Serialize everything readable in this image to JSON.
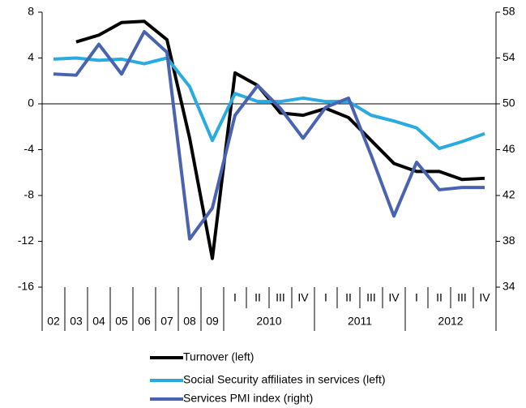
{
  "chart_data": {
    "type": "line",
    "categories": [
      "02",
      "03",
      "04",
      "05",
      "06",
      "07",
      "08",
      "09",
      "I",
      "II",
      "III",
      "IV",
      "I",
      "II",
      "III",
      "IV",
      "I",
      "II",
      "III",
      "IV"
    ],
    "category_groups": [
      "2010",
      "2011",
      "2012"
    ],
    "ylim": [
      -16,
      8
    ],
    "yticks": [
      8,
      4,
      0,
      -4,
      -8,
      -12,
      -16
    ],
    "y2lim": [
      34,
      58
    ],
    "y2ticks": [
      58,
      54,
      50,
      46,
      42,
      38,
      34
    ],
    "series": [
      {
        "name": "Turnover (left)",
        "color": "#000000",
        "values": [
          null,
          5.4,
          6.0,
          7.1,
          7.2,
          5.6,
          -3.0,
          -13.5,
          2.7,
          1.6,
          -0.8,
          -1.0,
          -0.4,
          -1.2,
          -3.2,
          -5.2,
          -5.9,
          -5.9,
          -6.6,
          -6.5
        ]
      },
      {
        "name": "Social Security affiliates in services (left)",
        "color": "#29abe2",
        "values": [
          3.9,
          4.0,
          3.8,
          3.9,
          3.5,
          4.0,
          1.5,
          -3.2,
          0.9,
          0.2,
          0.2,
          0.5,
          0.2,
          0.2,
          -1.0,
          -1.5,
          -2.1,
          -3.9,
          -3.3,
          -2.6
        ]
      },
      {
        "name": "Services PMI index (right)",
        "color": "#4a63b0",
        "axis": "y2",
        "values": [
          52.6,
          52.5,
          55.2,
          52.6,
          56.3,
          54.5,
          38.2,
          40.9,
          49.0,
          51.6,
          49.6,
          47.0,
          49.7,
          50.5,
          45.5,
          40.2,
          44.9,
          42.5,
          42.7,
          42.7
        ]
      }
    ]
  }
}
